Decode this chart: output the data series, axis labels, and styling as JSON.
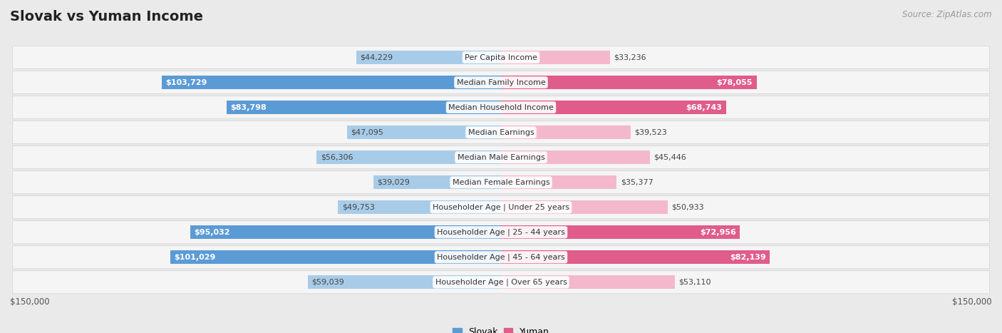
{
  "title": "Slovak vs Yuman Income",
  "source": "Source: ZipAtlas.com",
  "categories": [
    "Per Capita Income",
    "Median Family Income",
    "Median Household Income",
    "Median Earnings",
    "Median Male Earnings",
    "Median Female Earnings",
    "Householder Age | Under 25 years",
    "Householder Age | 25 - 44 years",
    "Householder Age | 45 - 64 years",
    "Householder Age | Over 65 years"
  ],
  "slovak_values": [
    44229,
    103729,
    83798,
    47095,
    56306,
    39029,
    49753,
    95032,
    101029,
    59039
  ],
  "yuman_values": [
    33236,
    78055,
    68743,
    39523,
    45446,
    35377,
    50933,
    72956,
    82139,
    53110
  ],
  "slovak_labels": [
    "$44,229",
    "$103,729",
    "$83,798",
    "$47,095",
    "$56,306",
    "$39,029",
    "$49,753",
    "$95,032",
    "$101,029",
    "$59,039"
  ],
  "yuman_labels": [
    "$33,236",
    "$78,055",
    "$68,743",
    "$39,523",
    "$45,446",
    "$35,377",
    "$50,933",
    "$72,956",
    "$82,139",
    "$53,110"
  ],
  "max_value": 150000,
  "slovak_color_light": "#a8cce8",
  "slovak_color_dark": "#5b9bd5",
  "yuman_color_light": "#f4b8cc",
  "yuman_color_dark": "#e05c8a",
  "bg_color": "#eaeaea",
  "row_bg_color": "#f5f5f5",
  "row_border_color": "#d0d0d0",
  "label_inside_color": "#ffffff",
  "label_outside_color": "#444444",
  "title_color": "#222222",
  "source_color": "#999999",
  "xlabel_left": "$150,000",
  "xlabel_right": "$150,000",
  "inside_threshold": 65000,
  "legend_slovak": "Slovak",
  "legend_yuman": "Yuman"
}
